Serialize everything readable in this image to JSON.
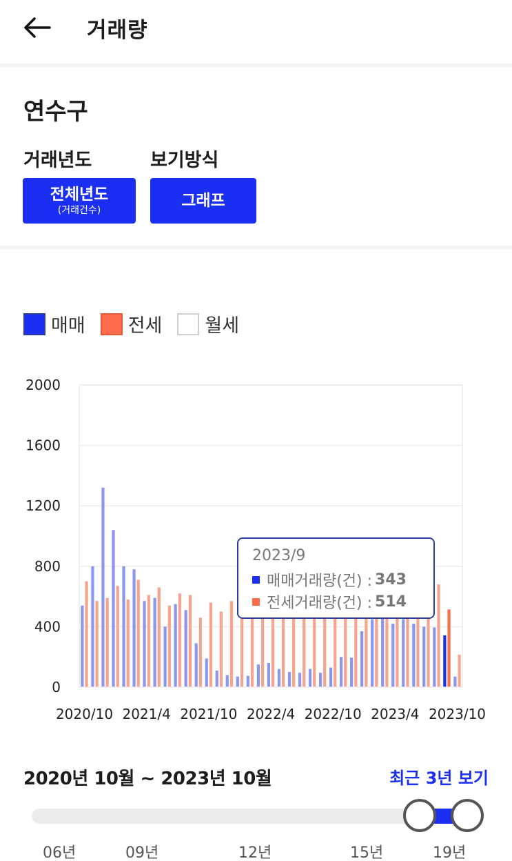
{
  "header": {
    "title": "거래량",
    "back_icon": "arrow-left-icon"
  },
  "filters": {
    "region": "연수구",
    "year_label": "거래년도",
    "year_button": {
      "main": "전체년도",
      "sub": "(거래건수)"
    },
    "view_label": "보기방식",
    "view_button": "그래프"
  },
  "legend": [
    {
      "label": "매매",
      "color": "#1b2ff2"
    },
    {
      "label": "전세",
      "color": "#ff6b4a"
    },
    {
      "label": "월세",
      "color": "#ffffff"
    }
  ],
  "chart_data": {
    "type": "bar",
    "y_ticks": [
      "0",
      "400",
      "800",
      "1200",
      "1600",
      "2000"
    ],
    "ylim": [
      0,
      2000
    ],
    "x_tick_labels": [
      "2020/10",
      "2021/4",
      "2021/10",
      "2022/4",
      "2022/10",
      "2023/4",
      "2023/10"
    ],
    "categories": [
      "2020/10",
      "2020/11",
      "2020/12",
      "2021/1",
      "2021/2",
      "2021/3",
      "2021/4",
      "2021/5",
      "2021/6",
      "2021/7",
      "2021/8",
      "2021/9",
      "2021/10",
      "2021/11",
      "2021/12",
      "2022/1",
      "2022/2",
      "2022/3",
      "2022/4",
      "2022/5",
      "2022/6",
      "2022/7",
      "2022/8",
      "2022/9",
      "2022/10",
      "2022/11",
      "2022/12",
      "2023/1",
      "2023/2",
      "2023/3",
      "2023/4",
      "2023/5",
      "2023/6",
      "2023/7",
      "2023/8",
      "2023/9",
      "2023/10"
    ],
    "series": [
      {
        "name": "매매",
        "color": "#1b2ff2",
        "values": [
          540,
          800,
          1320,
          1040,
          800,
          780,
          570,
          590,
          400,
          550,
          510,
          290,
          190,
          110,
          80,
          70,
          75,
          150,
          160,
          120,
          100,
          95,
          120,
          95,
          130,
          200,
          195,
          370,
          450,
          460,
          420,
          450,
          420,
          400,
          395,
          343,
          70
        ]
      },
      {
        "name": "전세",
        "color": "#ff6b4a",
        "values": [
          700,
          570,
          590,
          670,
          580,
          710,
          610,
          660,
          540,
          620,
          610,
          460,
          560,
          500,
          570,
          580,
          570,
          580,
          590,
          610,
          600,
          600,
          620,
          640,
          820,
          800,
          700,
          900,
          950,
          900,
          840,
          800,
          770,
          760,
          680,
          514,
          215
        ]
      }
    ]
  },
  "tooltip": {
    "period": "2023/9",
    "rows": [
      {
        "label": "매매거래량(건) : ",
        "value": "343",
        "color": "#1b2ff2"
      },
      {
        "label": "전세거래량(건) : ",
        "value": "514",
        "color": "#ff6b4a"
      }
    ]
  },
  "range": {
    "text": "2020년 10월 ~ 2023년 10월",
    "recent_link": "최근 3년 보기"
  },
  "slider": {
    "tick_labels": [
      "06년",
      "09년",
      "12년",
      "15년",
      "19년"
    ],
    "selected_start": "2020년 10월",
    "selected_end": "2023년 10월"
  }
}
